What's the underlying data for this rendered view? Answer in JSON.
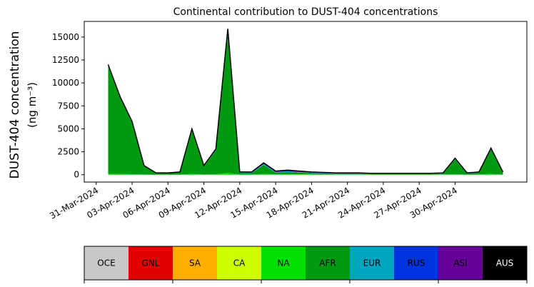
{
  "chart_data": {
    "type": "stacked_area",
    "title": "Continental contribution to DUST-404 concentrations",
    "y_label": [
      "DUST-404 concentration",
      "(ng m⁻³)"
    ],
    "x": [
      "01-Apr-2024",
      "02-Apr-2024",
      "03-Apr-2024",
      "04-Apr-2024",
      "05-Apr-2024",
      "06-Apr-2024",
      "07-Apr-2024",
      "08-Apr-2024",
      "09-Apr-2024",
      "10-Apr-2024",
      "11-Apr-2024",
      "12-Apr-2024",
      "13-Apr-2024",
      "14-Apr-2024",
      "15-Apr-2024",
      "16-Apr-2024",
      "17-Apr-2024",
      "18-Apr-2024",
      "19-Apr-2024",
      "20-Apr-2024",
      "21-Apr-2024",
      "22-Apr-2024",
      "23-Apr-2024",
      "24-Apr-2024",
      "25-Apr-2024",
      "26-Apr-2024",
      "27-Apr-2024",
      "28-Apr-2024",
      "29-Apr-2024",
      "30-Apr-2024",
      "01-May-2024",
      "02-May-2024",
      "03-May-2024",
      "04-May-2024"
    ],
    "series": [
      {
        "name": "OCE",
        "color": "#c8c8c8",
        "values": [
          0,
          0,
          0,
          0,
          0,
          0,
          0,
          0,
          0,
          0,
          0,
          0,
          0,
          0,
          0,
          0,
          0,
          0,
          0,
          0,
          0,
          0,
          0,
          0,
          0,
          0,
          0,
          0,
          0,
          0,
          0,
          0,
          0,
          0
        ]
      },
      {
        "name": "GNL",
        "color": "#e00000",
        "values": [
          0,
          0,
          0,
          0,
          0,
          0,
          0,
          0,
          0,
          0,
          0,
          0,
          0,
          0,
          0,
          0,
          0,
          0,
          0,
          0,
          0,
          0,
          0,
          0,
          0,
          0,
          0,
          0,
          0,
          0,
          0,
          0,
          0,
          0
        ]
      },
      {
        "name": "SA",
        "color": "#ffae00",
        "values": [
          0,
          0,
          0,
          0,
          0,
          0,
          0,
          0,
          0,
          0,
          0,
          0,
          0,
          0,
          0,
          0,
          0,
          0,
          0,
          0,
          0,
          0,
          0,
          0,
          0,
          0,
          0,
          0,
          0,
          0,
          0,
          0,
          0,
          0
        ]
      },
      {
        "name": "CA",
        "color": "#ccff00",
        "values": [
          0,
          0,
          0,
          0,
          0,
          0,
          0,
          0,
          0,
          0,
          0,
          0,
          0,
          0,
          0,
          0,
          0,
          0,
          0,
          0,
          0,
          0,
          0,
          0,
          0,
          0,
          0,
          0,
          0,
          0,
          0,
          0,
          0,
          0
        ]
      },
      {
        "name": "NA",
        "color": "#00e000",
        "values": [
          100,
          80,
          60,
          20,
          10,
          10,
          10,
          80,
          20,
          60,
          200,
          20,
          30,
          80,
          50,
          60,
          50,
          40,
          30,
          30,
          30,
          30,
          20,
          20,
          20,
          20,
          20,
          20,
          30,
          50,
          20,
          30,
          80,
          20
        ]
      },
      {
        "name": "AFR",
        "color": "#009a12",
        "values": [
          11890,
          8410,
          5730,
          970,
          160,
          160,
          250,
          4830,
          900,
          2570,
          15190,
          180,
          140,
          990,
          180,
          230,
          180,
          120,
          100,
          70,
          70,
          70,
          50,
          50,
          50,
          50,
          50,
          50,
          80,
          1630,
          90,
          180,
          2670,
          190
        ]
      },
      {
        "name": "EUR",
        "color": "#00a6c0",
        "values": [
          0,
          0,
          0,
          0,
          10,
          10,
          10,
          30,
          30,
          60,
          200,
          30,
          40,
          100,
          60,
          80,
          60,
          50,
          40,
          30,
          30,
          30,
          20,
          20,
          20,
          20,
          20,
          20,
          20,
          30,
          20,
          20,
          40,
          20
        ]
      },
      {
        "name": "RUS",
        "color": "#0033e0",
        "values": [
          10,
          10,
          10,
          10,
          10,
          10,
          10,
          10,
          10,
          10,
          10,
          10,
          10,
          10,
          10,
          10,
          10,
          10,
          10,
          10,
          10,
          10,
          10,
          10,
          10,
          10,
          10,
          10,
          10,
          10,
          10,
          10,
          10,
          10
        ]
      },
      {
        "name": "ASI",
        "color": "#660099",
        "values": [
          0,
          0,
          0,
          0,
          10,
          10,
          20,
          50,
          40,
          100,
          300,
          60,
          80,
          120,
          100,
          120,
          100,
          80,
          70,
          60,
          60,
          60,
          50,
          50,
          50,
          50,
          50,
          50,
          60,
          80,
          60,
          60,
          100,
          60
        ]
      },
      {
        "name": "AUS",
        "color": "#000000",
        "values": [
          0,
          0,
          0,
          0,
          0,
          0,
          0,
          0,
          0,
          0,
          0,
          0,
          0,
          0,
          0,
          0,
          0,
          0,
          0,
          0,
          0,
          0,
          0,
          0,
          0,
          0,
          0,
          0,
          0,
          0,
          0,
          0,
          0,
          0
        ]
      }
    ],
    "xlim": [
      "30-Mar-2024",
      "06-May-2024"
    ],
    "xticks": [
      "31-Mar-2024",
      "03-Apr-2024",
      "06-Apr-2024",
      "09-Apr-2024",
      "12-Apr-2024",
      "15-Apr-2024",
      "18-Apr-2024",
      "21-Apr-2024",
      "24-Apr-2024",
      "27-Apr-2024",
      "30-Apr-2024"
    ],
    "ylim": [
      -800,
      16700
    ],
    "yticks": [
      0,
      2500,
      5000,
      7500,
      10000,
      12500,
      15000
    ]
  }
}
